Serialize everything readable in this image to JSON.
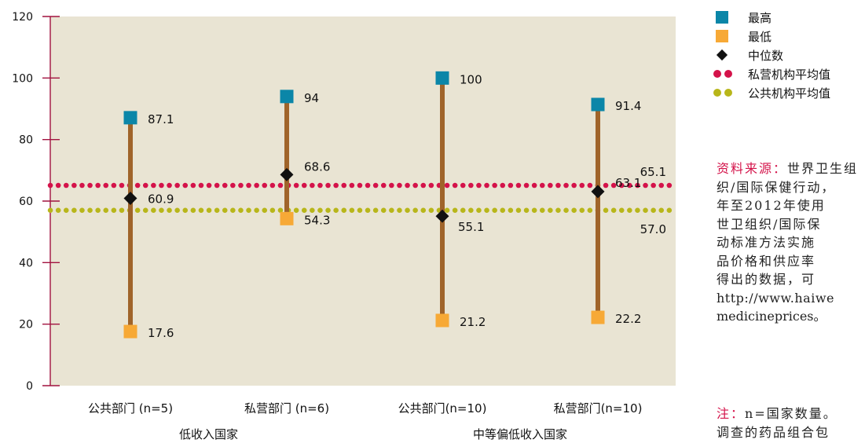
{
  "chart_data": {
    "type": "range",
    "ylim": [
      0,
      120
    ],
    "yticks": [
      "0",
      "20",
      "40",
      "60",
      "80",
      "100",
      "120"
    ],
    "categories": [
      "公共部门 (n=5)",
      "私营部门 (n=6)",
      "公共部门(n=10)",
      "私营部门(n=10)"
    ],
    "groups": [
      {
        "label": "低收入国家",
        "span": [
          0,
          1
        ]
      },
      {
        "label": "中等偏低收入国家",
        "span": [
          2,
          3
        ]
      }
    ],
    "series": [
      {
        "name": "最高",
        "values": [
          87.1,
          94,
          100,
          91.4
        ],
        "labels": [
          "87.1",
          "94",
          "100",
          "91.4"
        ]
      },
      {
        "name": "最低",
        "values": [
          17.6,
          54.3,
          21.2,
          22.2
        ],
        "labels": [
          "17.6",
          "54.3",
          "21.2",
          "22.2"
        ]
      },
      {
        "name": "中位数",
        "values": [
          60.9,
          68.6,
          55.1,
          63.1
        ],
        "labels": [
          "60.9",
          "68.6",
          "55.1",
          "63.1"
        ]
      }
    ],
    "reference_lines": [
      {
        "name": "私营机构平均值",
        "value": 65.1,
        "label": "65.1"
      },
      {
        "name": "公共机构平均值",
        "value": 57.0,
        "label": "57.0"
      }
    ],
    "colors": {
      "max": "#0b86a8",
      "min": "#f7a936",
      "median": "#111111",
      "range_bar": "#a0642a",
      "private_avg": "#d4134a",
      "public_avg": "#b8b61a",
      "axis": "#a1123f",
      "plot_bg": "#e9e4d3"
    },
    "grid": false,
    "legend": "right"
  },
  "legend": {
    "items": [
      {
        "label": "最高",
        "icon": "square-teal"
      },
      {
        "label": "最低",
        "icon": "square-orange"
      },
      {
        "label": "中位数",
        "icon": "diamond-black"
      },
      {
        "label": "私营机构平均值",
        "icon": "dots-red"
      },
      {
        "label": "公共机构平均值",
        "icon": "dots-olive"
      }
    ]
  },
  "source": {
    "label": "资料来源：",
    "lines": [
      "世界卫生组",
      "织/国际保健行动，",
      "年至2012年使用",
      "世卫组织/国际保",
      "动标准方法实施",
      "品价格和供应率",
      "得出的数据，可",
      "http://www.haiwe",
      "medicineprices。"
    ]
  },
  "note": {
    "label": "注：",
    "lines": [
      "n=国家数量。",
      "调查的药品组合包"
    ]
  }
}
